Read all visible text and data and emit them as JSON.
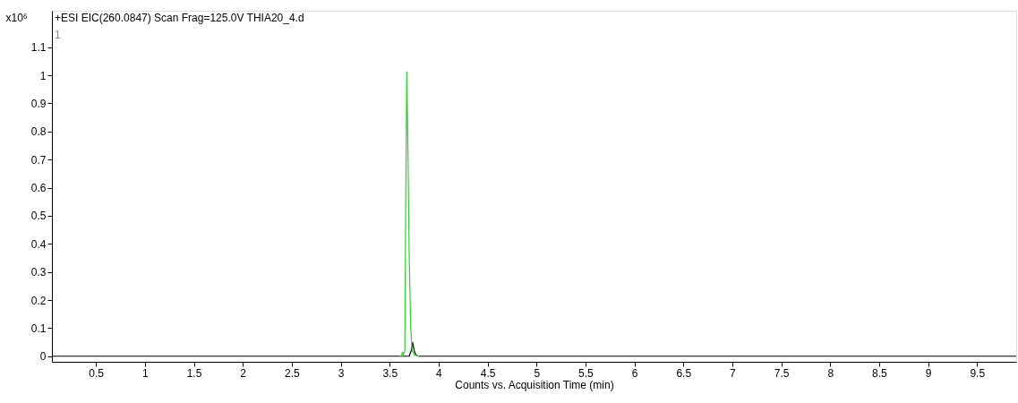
{
  "chart_data": {
    "type": "line",
    "title": "+ESI EIC(260.0847) Scan Frag=125.0V THIA20_4.d",
    "xlabel": "Counts vs. Acquisition Time (min)",
    "ylabel": "x10⁶",
    "annotations": [
      "1"
    ],
    "xlim": [
      0.05,
      9.9
    ],
    "ylim": [
      -0.02,
      1.23
    ],
    "xticks": [
      0.5,
      1,
      1.5,
      2,
      2.5,
      3,
      3.5,
      4,
      4.5,
      5,
      5.5,
      6,
      6.5,
      7,
      7.5,
      8,
      8.5,
      9,
      9.5
    ],
    "yticks": [
      0,
      0.1,
      0.2,
      0.3,
      0.4,
      0.5,
      0.6,
      0.7,
      0.8,
      0.9,
      1,
      1.1
    ],
    "grid": false,
    "series": [
      {
        "color": "#000000",
        "x": [
          0.05,
          3.7,
          3.72,
          3.735,
          3.75,
          3.77,
          3.8,
          9.9
        ],
        "values": [
          0,
          0,
          0.02,
          0.049,
          0.02,
          0.003,
          0,
          0
        ]
      },
      {
        "color": "#33cc33",
        "x": [
          3.6,
          3.62,
          3.63,
          3.64,
          3.655,
          3.663,
          3.675,
          3.685,
          3.7,
          3.715,
          3.73,
          3.75,
          3.8
        ],
        "values": [
          0,
          0,
          0.015,
          0.005,
          0.02,
          0.505,
          1.013,
          0.776,
          0.35,
          0.1,
          0.02,
          0.005,
          0
        ]
      }
    ]
  }
}
